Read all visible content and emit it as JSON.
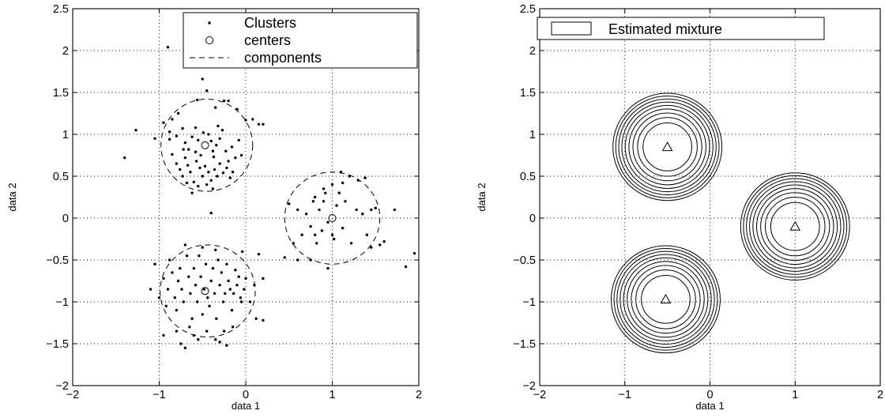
{
  "chart_data": [
    {
      "type": "scatter",
      "xlabel": "data 1",
      "ylabel": "data 2",
      "xlim": [
        -2,
        2
      ],
      "ylim": [
        -2,
        2.5
      ],
      "xticks": [
        "−2",
        "−1",
        "0",
        "1",
        "2"
      ],
      "yticks": [
        "−2",
        "−1.5",
        "−1",
        "−0.5",
        "0",
        "0.5",
        "1",
        "1.5",
        "2",
        "2.5"
      ],
      "grid": true,
      "legend": {
        "position": "top-right",
        "entries": [
          "Clusters",
          "centers",
          "components"
        ]
      },
      "centers": [
        {
          "x": -0.47,
          "y": 0.87
        },
        {
          "x": 1.0,
          "y": 0.0
        },
        {
          "x": -0.47,
          "y": -0.87
        }
      ],
      "components": [
        {
          "cx": -0.45,
          "cy": 0.87,
          "rx": 0.53,
          "ry": 0.55
        },
        {
          "cx": 1.0,
          "cy": 0.0,
          "rx": 0.55,
          "ry": 0.55
        },
        {
          "cx": -0.44,
          "cy": -0.87,
          "rx": 0.55,
          "ry": 0.55
        }
      ],
      "series": [
        {
          "name": "Clusters",
          "points": [
            [
              -0.9,
              2.04
            ],
            [
              -0.78,
              1.25
            ],
            [
              -0.56,
              1.41
            ],
            [
              -0.45,
              1.52
            ],
            [
              -0.5,
              1.66
            ],
            [
              -0.35,
              1.32
            ],
            [
              -0.25,
              1.4
            ],
            [
              -0.2,
              1.4
            ],
            [
              -0.1,
              1.3
            ],
            [
              0,
              1.17
            ],
            [
              0.08,
              1.18
            ],
            [
              0.15,
              1.12
            ],
            [
              0.2,
              1.12
            ],
            [
              -1.4,
              0.72
            ],
            [
              -1.27,
              1.05
            ],
            [
              -1.05,
              0.95
            ],
            [
              -0.95,
              1.14
            ],
            [
              -0.85,
              1.18
            ],
            [
              -0.88,
              0.94
            ],
            [
              -0.8,
              0.98
            ],
            [
              -0.73,
              1.07
            ],
            [
              -0.7,
              0.9
            ],
            [
              -0.66,
              0.82
            ],
            [
              -0.62,
              0.97
            ],
            [
              -0.58,
              1.08
            ],
            [
              -0.55,
              0.93
            ],
            [
              -0.52,
              0.75
            ],
            [
              -0.49,
              1.02
            ],
            [
              -0.43,
              1.0
            ],
            [
              -0.4,
              0.92
            ],
            [
              -0.37,
              0.73
            ],
            [
              -0.34,
              0.87
            ],
            [
              -0.3,
              0.95
            ],
            [
              -0.27,
              1.05
            ],
            [
              -0.23,
              0.8
            ],
            [
              -0.2,
              0.68
            ],
            [
              -0.16,
              0.85
            ],
            [
              -0.12,
              0.72
            ],
            [
              -0.08,
              0.93
            ],
            [
              -0.05,
              0.75
            ],
            [
              -0.85,
              0.76
            ],
            [
              -0.8,
              0.65
            ],
            [
              -0.76,
              0.58
            ],
            [
              -0.73,
              0.5
            ],
            [
              -0.7,
              0.72
            ],
            [
              -0.67,
              0.63
            ],
            [
              -0.64,
              0.55
            ],
            [
              -0.6,
              0.43
            ],
            [
              -0.57,
              0.68
            ],
            [
              -0.53,
              0.6
            ],
            [
              -0.5,
              0.5
            ],
            [
              -0.47,
              0.62
            ],
            [
              -0.43,
              0.55
            ],
            [
              -0.4,
              0.45
            ],
            [
              -0.36,
              0.58
            ],
            [
              -0.33,
              0.5
            ],
            [
              -0.3,
              0.65
            ],
            [
              -0.26,
              0.54
            ],
            [
              -0.22,
              0.6
            ],
            [
              -0.18,
              0.48
            ],
            [
              -0.15,
              0.55
            ],
            [
              -0.68,
              0.42
            ],
            [
              -0.62,
              0.3
            ],
            [
              -0.55,
              0.38
            ],
            [
              -0.45,
              0.4
            ],
            [
              -0.38,
              0.35
            ],
            [
              -0.88,
              1.03
            ],
            [
              -0.72,
              0.82
            ],
            [
              -0.58,
              0.79
            ],
            [
              -0.38,
              0.8
            ],
            [
              -0.32,
              1.1
            ],
            [
              -0.4,
              0.06
            ],
            [
              0.5,
              0.17
            ],
            [
              0.6,
              0.1
            ],
            [
              0.65,
              -0.2
            ],
            [
              0.7,
              0.05
            ],
            [
              0.75,
              -0.1
            ],
            [
              0.8,
              0.25
            ],
            [
              0.82,
              -0.3
            ],
            [
              0.85,
              0.1
            ],
            [
              0.88,
              -0.15
            ],
            [
              0.9,
              0.35
            ],
            [
              0.92,
              0.3
            ],
            [
              0.95,
              -0.05
            ],
            [
              1.0,
              0.4
            ],
            [
              1.02,
              -0.25
            ],
            [
              1.05,
              0.15
            ],
            [
              1.08,
              0.3
            ],
            [
              1.12,
              -0.12
            ],
            [
              1.15,
              0.2
            ],
            [
              1.2,
              0.5
            ],
            [
              1.22,
              -0.3
            ],
            [
              1.28,
              0.1
            ],
            [
              1.3,
              0.45
            ],
            [
              1.35,
              0.05
            ],
            [
              1.4,
              -0.2
            ],
            [
              1.45,
              0.1
            ],
            [
              1.5,
              0.12
            ],
            [
              1.6,
              -0.28
            ],
            [
              1.72,
              0.1
            ],
            [
              1.95,
              -0.42
            ],
            [
              1.85,
              -0.58
            ],
            [
              1.45,
              -0.35
            ],
            [
              1.55,
              -0.32
            ],
            [
              0.75,
              -0.5
            ],
            [
              0.6,
              -0.5
            ],
            [
              0.55,
              -0.3
            ],
            [
              0.78,
              0.2
            ],
            [
              1.1,
              0.55
            ],
            [
              0.8,
              -0.2
            ],
            [
              1.0,
              -0.2
            ],
            [
              1.12,
              0.42
            ],
            [
              1.38,
              0.48
            ],
            [
              0.9,
              0.2
            ],
            [
              0.95,
              -0.6
            ],
            [
              0.45,
              -0.47
            ],
            [
              -1.05,
              -0.55
            ],
            [
              -1.1,
              -0.85
            ],
            [
              -1.0,
              -0.95
            ],
            [
              -0.95,
              -0.72
            ],
            [
              -0.92,
              -1.05
            ],
            [
              -0.9,
              -0.85
            ],
            [
              -0.88,
              -0.5
            ],
            [
              -0.85,
              -0.65
            ],
            [
              -0.82,
              -0.95
            ],
            [
              -0.8,
              -1.1
            ],
            [
              -0.78,
              -0.75
            ],
            [
              -0.76,
              -0.6
            ],
            [
              -0.74,
              -0.85
            ],
            [
              -0.72,
              -1.0
            ],
            [
              -0.7,
              -0.32
            ],
            [
              -0.68,
              -0.45
            ],
            [
              -0.66,
              -0.7
            ],
            [
              -0.64,
              -0.9
            ],
            [
              -0.62,
              -1.2
            ],
            [
              -0.6,
              -0.6
            ],
            [
              -0.58,
              -0.8
            ],
            [
              -0.56,
              -1.0
            ],
            [
              -0.54,
              -0.45
            ],
            [
              -0.52,
              -0.7
            ],
            [
              -0.5,
              -1.15
            ],
            [
              -0.48,
              -0.85
            ],
            [
              -0.46,
              -0.55
            ],
            [
              -0.44,
              -0.95
            ],
            [
              -0.42,
              -1.05
            ],
            [
              -0.4,
              -0.75
            ],
            [
              -0.38,
              -0.6
            ],
            [
              -0.36,
              -0.9
            ],
            [
              -0.34,
              -1.2
            ],
            [
              -0.32,
              -0.5
            ],
            [
              -0.3,
              -0.8
            ],
            [
              -0.28,
              -0.65
            ],
            [
              -0.26,
              -1.0
            ],
            [
              -0.24,
              -0.9
            ],
            [
              -0.22,
              -0.55
            ],
            [
              -0.2,
              -0.75
            ],
            [
              -0.18,
              -0.85
            ],
            [
              -0.16,
              -1.1
            ],
            [
              -0.14,
              -0.9
            ],
            [
              -0.12,
              -0.62
            ],
            [
              -0.1,
              -0.8
            ],
            [
              -0.08,
              -0.7
            ],
            [
              -0.06,
              -0.95
            ],
            [
              -0.04,
              -0.4
            ],
            [
              -0.02,
              -0.85
            ],
            [
              0.0,
              -0.72
            ],
            [
              0.05,
              -1.0
            ],
            [
              0.1,
              -0.8
            ],
            [
              -0.65,
              -1.3
            ],
            [
              -0.7,
              -1.55
            ],
            [
              -0.6,
              -1.4
            ],
            [
              -0.45,
              -1.35
            ],
            [
              -0.35,
              -1.45
            ],
            [
              -0.25,
              -1.35
            ],
            [
              -0.3,
              -1.48
            ],
            [
              -0.22,
              -1.52
            ],
            [
              -0.15,
              -1.3
            ],
            [
              -0.05,
              -1.0
            ],
            [
              0.12,
              -1.2
            ],
            [
              0.2,
              -1.22
            ],
            [
              0.15,
              -0.43
            ],
            [
              0.2,
              -0.72
            ],
            [
              -0.8,
              -1.35
            ],
            [
              -0.95,
              -1.4
            ],
            [
              -0.5,
              -0.35
            ],
            [
              -0.35,
              -0.38
            ],
            [
              -0.55,
              -1.45
            ],
            [
              -0.75,
              -1.5
            ]
          ]
        }
      ]
    },
    {
      "type": "contour",
      "xlabel": "data 1",
      "ylabel": "data 2",
      "xlim": [
        -2,
        2
      ],
      "ylim": [
        -2,
        2.5
      ],
      "xticks": [
        "−2",
        "−1",
        "0",
        "1",
        "2"
      ],
      "yticks": [
        "−2",
        "−1.5",
        "−1",
        "−0.5",
        "0",
        "0.5",
        "1",
        "1.5",
        "2",
        "2.5"
      ],
      "grid": true,
      "legend": {
        "position": "top-left",
        "entries": [
          "Estimated mixture"
        ]
      },
      "components": [
        {
          "mean": [
            -0.5,
            0.85
          ],
          "radius_max": 0.64
        },
        {
          "mean": [
            1.0,
            -0.1
          ],
          "radius_max": 0.64
        },
        {
          "mean": [
            -0.52,
            -0.97
          ],
          "radius_max": 0.64
        }
      ],
      "levels": 10
    }
  ]
}
